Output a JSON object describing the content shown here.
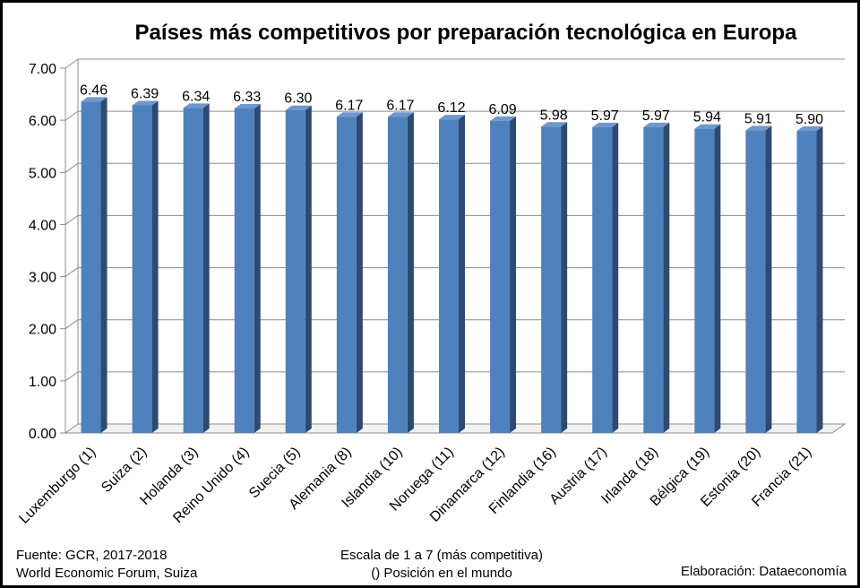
{
  "chart_data": {
    "type": "bar",
    "title": "Países más competitivos por preparación tecnológica en Europa",
    "categories": [
      "Luxemburgo (1)",
      "Suiza (2)",
      "Holanda (3)",
      "Reino Unido (4)",
      "Suecia (5)",
      "Alemania (8)",
      "Islandia (10)",
      "Noruega (11)",
      "Dinamarca (12)",
      "Finlandia (16)",
      "Austria (17)",
      "Irlanda (18)",
      "Bélgica (19)",
      "Estonia (20)",
      "Francia (21)"
    ],
    "values": [
      6.46,
      6.39,
      6.34,
      6.33,
      6.3,
      6.17,
      6.17,
      6.12,
      6.09,
      5.98,
      5.97,
      5.97,
      5.94,
      5.91,
      5.9
    ],
    "data_labels": [
      "6.46",
      "6.39",
      "6.34",
      "6.33",
      "6.30",
      "6.17",
      "6.17",
      "6.12",
      "6.09",
      "5.98",
      "5.97",
      "5.97",
      "5.94",
      "5.91",
      "5.90"
    ],
    "yticks": [
      "0.00",
      "1.00",
      "2.00",
      "3.00",
      "4.00",
      "5.00",
      "6.00",
      "7.00"
    ],
    "ylim": [
      0,
      7
    ],
    "grid": true,
    "legend": "none",
    "bar_color": "#4f81bd"
  },
  "footer": {
    "source_line1": "Fuente:  GCR, 2017-2018",
    "source_line2": "World Economic Forum, Suiza",
    "scale_line1": "Escala de 1 a 7 (más competitiva)",
    "scale_line2": "() Posición en el mundo",
    "credit": "Elaboración: Dataeconomía"
  }
}
